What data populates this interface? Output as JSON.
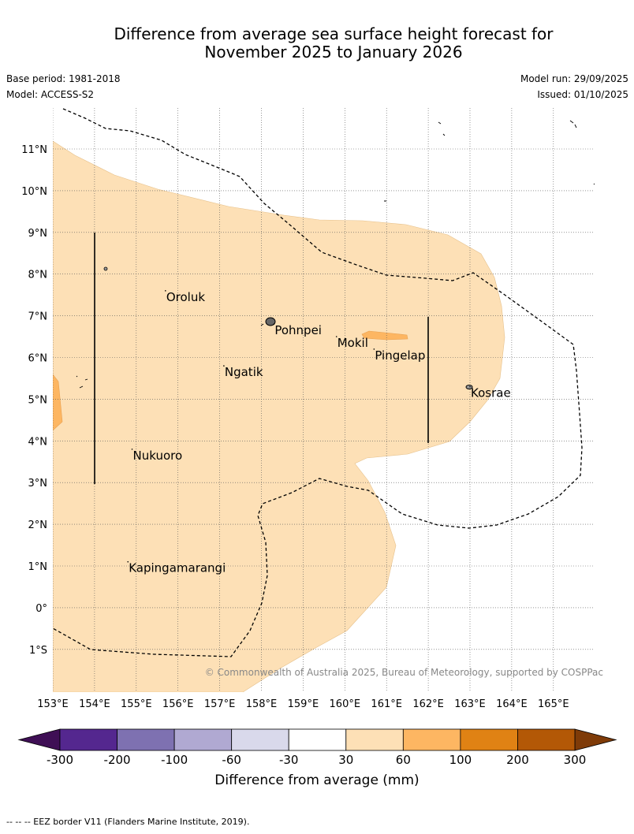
{
  "title_line1": "Difference from average sea surface height forecast for",
  "title_line2": "November 2025 to January 2026",
  "base_period": "Base period: 1981-2018",
  "model": "Model: ACCESS-S2",
  "model_run": "Model run: 29/09/2025",
  "issued": "Issued: 01/10/2025",
  "copyright": "© Commonwealth of Australia 2025, Bureau of Meteorology, supported by COSPPac",
  "footnote": "--  --  -- EEZ border V11 (Flanders Marine Institute, 2019).",
  "map": {
    "lon_labels": [
      "153°E",
      "154°E",
      "155°E",
      "156°E",
      "157°E",
      "158°E",
      "159°E",
      "160°E",
      "161°E",
      "162°E",
      "163°E",
      "164°E",
      "165°E"
    ],
    "lat_labels": [
      "11°N",
      "10°N",
      "9°N",
      "8°N",
      "7°N",
      "6°N",
      "5°N",
      "4°N",
      "3°N",
      "2°N",
      "1°N",
      "0°",
      "1°S"
    ],
    "places": [
      {
        "name": "Oroluk",
        "lon": 155.7,
        "lat": 7.6
      },
      {
        "name": "Pohnpei",
        "lon": 158.3,
        "lat": 6.8
      },
      {
        "name": "Mokil",
        "lon": 159.8,
        "lat": 6.5
      },
      {
        "name": "Pingelap",
        "lon": 160.7,
        "lat": 6.2
      },
      {
        "name": "Ngatik",
        "lon": 157.1,
        "lat": 5.8
      },
      {
        "name": "Kosrae",
        "lon": 163.0,
        "lat": 5.3
      },
      {
        "name": "Nukuoro",
        "lon": 154.9,
        "lat": 3.8
      },
      {
        "name": "Kapingamarangi",
        "lon": 154.8,
        "lat": 1.1
      }
    ]
  },
  "colorbar": {
    "label": "Difference from average (mm)",
    "ticks": [
      "-300",
      "-200",
      "-100",
      "-60",
      "-30",
      "30",
      "60",
      "100",
      "200",
      "300"
    ],
    "colors": [
      "#54278f",
      "#7e71b1",
      "#b0a9d2",
      "#d9d9eb",
      "#ffffff",
      "#fde0b6",
      "#fdb662",
      "#e08214",
      "#b35806"
    ],
    "under_color": "#3f0f55",
    "over_color": "#7f3b08"
  }
}
